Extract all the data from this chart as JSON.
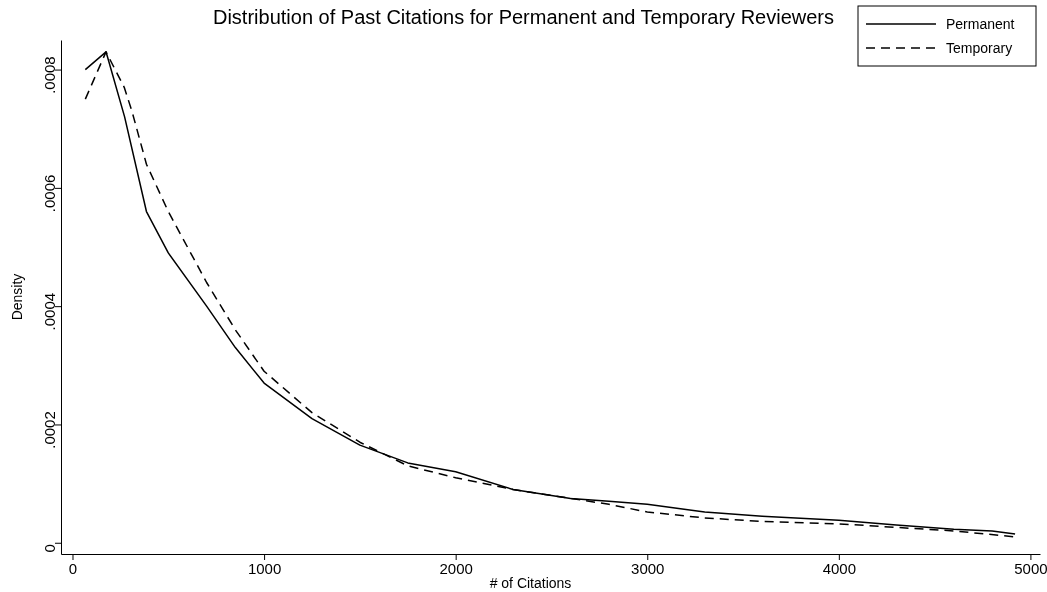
{
  "chart_data": {
    "type": "line",
    "title": "Distribution of Past Citations for Permanent and Temporary Reviewers",
    "xlabel": "# of Citations",
    "ylabel": "Density",
    "xlim": [
      -60,
      5050
    ],
    "xticks": [
      0,
      1000,
      2000,
      3000,
      4000,
      5000
    ],
    "ylim": [
      -1.9e-05,
      0.00085
    ],
    "yticks": [
      {
        "value": 0,
        "label": "0"
      },
      {
        "value": 0.0002,
        "label": ".0002"
      },
      {
        "value": 0.0004,
        "label": ".0004"
      },
      {
        "value": 0.0006,
        "label": ".0006"
      },
      {
        "value": 0.0008,
        "label": ".0008"
      }
    ],
    "grid": false,
    "legend": "top right",
    "marker": "none",
    "series": [
      {
        "name": "Permanent",
        "color": "#000000",
        "line_style": "solid",
        "x": [
          67,
          175,
          272,
          386,
          500,
          700,
          850,
          1000,
          1250,
          1500,
          1750,
          2000,
          2300,
          2600,
          2800,
          3000,
          3300,
          3600,
          4000,
          4300,
          4600,
          4800,
          4920
        ],
        "values": [
          0.0008,
          0.00083,
          0.00072,
          0.00056,
          0.00049,
          0.0004,
          0.00033,
          0.00027,
          0.00021,
          0.000165,
          0.000135,
          0.00012,
          9e-05,
          7.5e-05,
          7e-05,
          6.5e-05,
          5.2e-05,
          4.5e-05,
          3.8e-05,
          3e-05,
          2.3e-05,
          2e-05,
          1.5e-05
        ]
      },
      {
        "name": "Temporary",
        "color": "#000000",
        "line_style": "dashed",
        "x": [
          67,
          175,
          270,
          310,
          386,
          500,
          700,
          850,
          1000,
          1250,
          1500,
          1750,
          2000,
          2300,
          2600,
          2800,
          3000,
          3300,
          3600,
          4000,
          4300,
          4600,
          4920
        ],
        "values": [
          0.00075,
          0.00083,
          0.00077,
          0.00073,
          0.00064,
          0.00056,
          0.00044,
          0.00036,
          0.00029,
          0.00022,
          0.00017,
          0.00013,
          0.00011,
          9e-05,
          7.5e-05,
          6.5e-05,
          5.2e-05,
          4.2e-05,
          3.6e-05,
          3.2e-05,
          2.6e-05,
          2e-05,
          1e-05
        ]
      }
    ]
  }
}
